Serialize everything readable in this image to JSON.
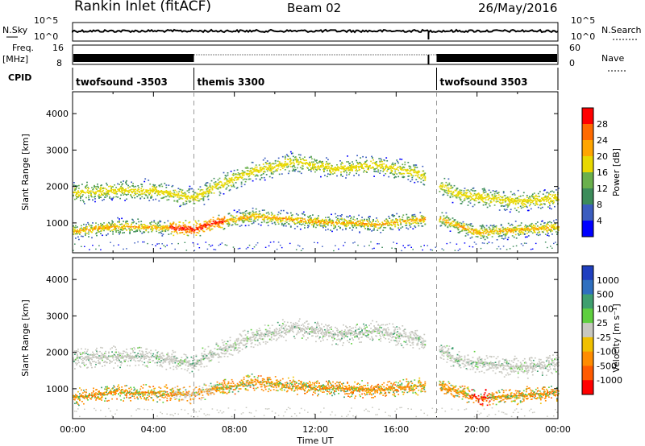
{
  "header": {
    "title": "Rankin Inlet (fitACF)",
    "beam": "Beam 02",
    "date": "26/May/2016"
  },
  "time_axis": {
    "label": "Time UT",
    "ticks": [
      "00:00",
      "04:00",
      "08:00",
      "12:00",
      "16:00",
      "20:00",
      "00:00"
    ]
  },
  "nsky": {
    "label": "N.Sky",
    "ticks": [
      "10^5",
      "10^0"
    ],
    "right_label": "N.Search",
    "right_ticks": [
      "10^5",
      "10^0"
    ]
  },
  "freq": {
    "label": "Freq.",
    "unit": "[MHz]",
    "ticks": [
      "8",
      "16"
    ],
    "right_label": "Nave",
    "right_ticks": [
      "60",
      "0"
    ]
  },
  "cpid": {
    "label": "CPID",
    "segments": [
      {
        "name": "twofsound -3503",
        "start_hour": 0.0,
        "end_hour": 6.0
      },
      {
        "name": "themis 3300",
        "start_hour": 6.0,
        "end_hour": 18.0
      },
      {
        "name": "twofsound 3503",
        "start_hour": 18.0,
        "end_hour": 24.0
      }
    ]
  },
  "power_panel": {
    "ylabel": "Slant Range [km]",
    "yticks": [
      "1000",
      "2000",
      "3000",
      "4000"
    ],
    "colorbar_label": "Power [dB]",
    "colorbar_ticks": [
      "4",
      "8",
      "12",
      "16",
      "20",
      "24",
      "28"
    ],
    "colors": [
      "#0000ff",
      "#3b5dbf",
      "#3c8c5a",
      "#6ab04c",
      "#e8d800",
      "#ffa500",
      "#ff6a00",
      "#ff0000"
    ]
  },
  "velocity_panel": {
    "ylabel": "Slant Range [km]",
    "yticks": [
      "1000",
      "2000",
      "3000",
      "4000"
    ],
    "colorbar_label": "Velocity [m s⁻¹]",
    "colorbar_ticks": [
      "1000",
      "500",
      "100",
      "25",
      "-25",
      "-100",
      "-500",
      "-1000"
    ],
    "colors": [
      "#1f3fbf",
      "#2f6fbf",
      "#3f9f6f",
      "#5fcf3f",
      "#c8c8c0",
      "#f0c000",
      "#ff8c00",
      "#ff5a00",
      "#ff0000"
    ]
  },
  "chart_data": {
    "type": "heatmap",
    "x_range_hours": [
      0,
      24
    ],
    "y_range_km": [
      180,
      4600
    ],
    "bands": [
      {
        "name": "lower",
        "points": [
          [
            0,
            780
          ],
          [
            2,
            920
          ],
          [
            4,
            900
          ],
          [
            6,
            850
          ],
          [
            7,
            1020
          ],
          [
            9,
            1200
          ],
          [
            12,
            1050
          ],
          [
            15,
            980
          ],
          [
            18,
            1150
          ],
          [
            20,
            750
          ],
          [
            24,
            900
          ]
        ]
      },
      {
        "name": "upper",
        "points": [
          [
            0,
            1850
          ],
          [
            2,
            1900
          ],
          [
            4,
            1900
          ],
          [
            6,
            1700
          ],
          [
            7,
            2000
          ],
          [
            9,
            2450
          ],
          [
            11,
            2700
          ],
          [
            13,
            2500
          ],
          [
            15,
            2600
          ],
          [
            17,
            2400
          ],
          [
            19,
            1800
          ],
          [
            22,
            1600
          ],
          [
            24,
            1700
          ]
        ]
      }
    ]
  }
}
